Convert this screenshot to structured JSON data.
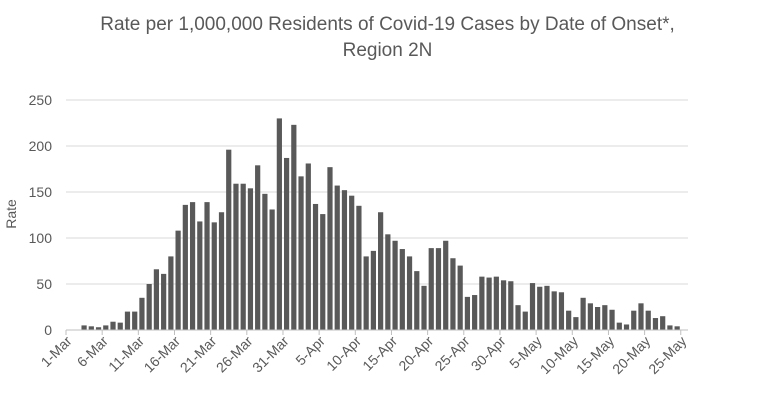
{
  "chart_data": {
    "type": "bar",
    "title_lines": [
      "Rate per 1,000,000 Residents of Covid-19 Cases by Date of Onset*,",
      "Region 2N"
    ],
    "xlabel": "",
    "ylabel": "Rate",
    "ylim": [
      0,
      250
    ],
    "yticks": [
      0,
      50,
      100,
      150,
      200,
      250
    ],
    "grid": true,
    "bar_color": "#595959",
    "grid_color": "#d9d9d9",
    "axis_color": "#bfbfbf",
    "x_tick_labels": [
      {
        "index": 0,
        "label": "1-Mar"
      },
      {
        "index": 5,
        "label": "6-Mar"
      },
      {
        "index": 10,
        "label": "11-Mar"
      },
      {
        "index": 15,
        "label": "16-Mar"
      },
      {
        "index": 20,
        "label": "21-Mar"
      },
      {
        "index": 25,
        "label": "26-Mar"
      },
      {
        "index": 30,
        "label": "31-Mar"
      },
      {
        "index": 35,
        "label": "5-Apr"
      },
      {
        "index": 40,
        "label": "10-Apr"
      },
      {
        "index": 45,
        "label": "15-Apr"
      },
      {
        "index": 50,
        "label": "20-Apr"
      },
      {
        "index": 55,
        "label": "25-Apr"
      },
      {
        "index": 60,
        "label": "30-Apr"
      },
      {
        "index": 65,
        "label": "5-May"
      },
      {
        "index": 70,
        "label": "10-May"
      },
      {
        "index": 75,
        "label": "15-May"
      },
      {
        "index": 80,
        "label": "20-May"
      },
      {
        "index": 85,
        "label": "25-May"
      }
    ],
    "values": [
      0,
      0,
      5,
      4,
      3,
      5,
      9,
      8,
      20,
      20,
      35,
      50,
      66,
      61,
      80,
      108,
      136,
      139,
      118,
      139,
      117,
      128,
      196,
      159,
      159,
      154,
      179,
      148,
      131,
      230,
      187,
      223,
      167,
      181,
      137,
      126,
      177,
      157,
      152,
      146,
      135,
      80,
      86,
      128,
      104,
      97,
      88,
      80,
      64,
      48,
      89,
      89,
      97,
      78,
      70,
      36,
      38,
      58,
      57,
      58,
      54,
      53,
      27,
      20,
      51,
      47,
      48,
      42,
      41,
      21,
      14,
      35,
      29,
      25,
      27,
      22,
      8,
      6,
      21,
      29,
      21,
      13,
      15,
      5,
      4,
      0
    ]
  }
}
